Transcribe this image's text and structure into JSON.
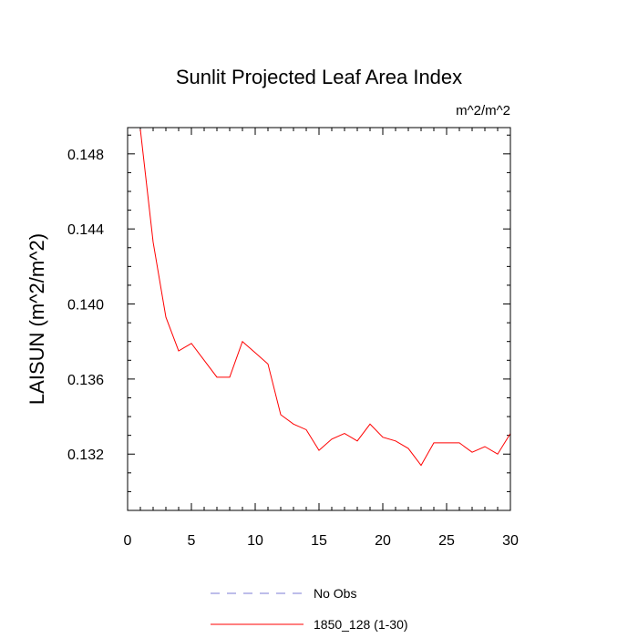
{
  "chart_data": {
    "type": "line",
    "title": "Sunlit Projected Leaf Area Index",
    "units_label": "m^2/m^2",
    "xlabel": "",
    "ylabel": "LAISUN  (m^2/m^2)",
    "xlim": [
      0,
      30
    ],
    "ylim": [
      0.129,
      0.1494
    ],
    "x_ticks": [
      0,
      5,
      10,
      15,
      20,
      25,
      30
    ],
    "x_tick_labels": [
      "0",
      "5",
      "10",
      "15",
      "20",
      "25",
      "30"
    ],
    "y_ticks": [
      0.132,
      0.136,
      0.14,
      0.144,
      0.148
    ],
    "y_tick_labels": [
      "0.132",
      "0.136",
      "0.140",
      "0.144",
      "0.148"
    ],
    "series": [
      {
        "name": "No Obs",
        "color": "#7b7bd6",
        "style": "dashed",
        "x": [],
        "y": []
      },
      {
        "name": "1850_128 (1-30)",
        "color": "#ff0000",
        "style": "solid",
        "x": [
          1,
          2,
          3,
          4,
          5,
          6,
          7,
          8,
          9,
          10,
          11,
          12,
          13,
          14,
          15,
          16,
          17,
          18,
          19,
          20,
          21,
          22,
          23,
          24,
          25,
          26,
          27,
          28,
          29,
          30
        ],
        "y": [
          0.1493,
          0.1433,
          0.1393,
          0.1375,
          0.1379,
          0.137,
          0.1361,
          0.1361,
          0.138,
          0.1374,
          0.1368,
          0.1341,
          0.1336,
          0.1333,
          0.1322,
          0.1328,
          0.1331,
          0.1327,
          0.1336,
          0.1329,
          0.1327,
          0.1323,
          0.1314,
          0.1326,
          0.1326,
          0.1326,
          0.1321,
          0.1324,
          0.132,
          0.1331
        ]
      }
    ],
    "legend": {
      "placement": "bottom-center"
    }
  }
}
